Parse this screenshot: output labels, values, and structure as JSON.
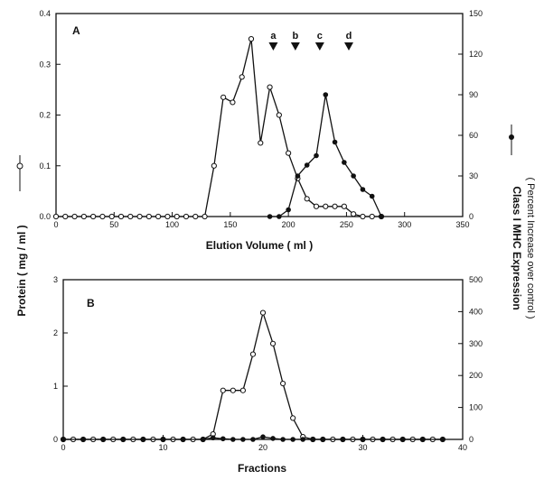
{
  "chart_data": [
    {
      "panel": "A",
      "type": "line",
      "xlabel": "Elution Volume ( ml )",
      "ylabel_left": "Protein ( mg / ml )",
      "ylabel_right_line1": "Class I MHC Expression",
      "ylabel_right_line2": "( Percent Increase over control )",
      "xlim": [
        0,
        350
      ],
      "ylim_left": [
        0,
        0.4
      ],
      "ylim_right": [
        0,
        150
      ],
      "xticks": [
        0,
        50,
        100,
        150,
        200,
        250,
        300,
        350
      ],
      "yticks_left": [
        "0.0",
        "0.1",
        "0.2",
        "0.3",
        "0.4"
      ],
      "yticks_right": [
        "0",
        "30",
        "60",
        "90",
        "120",
        "150"
      ],
      "markers": [
        {
          "label": "a",
          "x": 187
        },
        {
          "label": "b",
          "x": 206
        },
        {
          "label": "c",
          "x": 227
        },
        {
          "label": "d",
          "x": 252
        }
      ],
      "series": [
        {
          "axis": "left",
          "marker": "open-circle",
          "x": [
            0,
            8,
            16,
            24,
            32,
            40,
            48,
            56,
            64,
            72,
            80,
            88,
            96,
            104,
            112,
            120,
            128,
            136,
            144,
            152,
            160,
            168,
            176,
            184,
            192,
            200,
            208,
            216,
            224,
            232,
            240,
            248,
            256,
            264,
            272,
            280
          ],
          "y": [
            0,
            0,
            0,
            0,
            0,
            0,
            0,
            0,
            0,
            0,
            0,
            0,
            0,
            0,
            0,
            0,
            0,
            0.1,
            0.235,
            0.225,
            0.275,
            0.35,
            0.145,
            0.255,
            0.2,
            0.125,
            0.075,
            0.035,
            0.02,
            0.02,
            0.02,
            0.02,
            0.005,
            0,
            0,
            0
          ]
        },
        {
          "axis": "right",
          "marker": "filled-circle",
          "x": [
            184,
            192,
            200,
            208,
            216,
            224,
            232,
            240,
            248,
            256,
            264,
            272,
            280
          ],
          "y": [
            0,
            0,
            5,
            30,
            38,
            45,
            90,
            55,
            40,
            30,
            20,
            15,
            0
          ]
        }
      ]
    },
    {
      "panel": "B",
      "type": "line",
      "xlabel": "Fractions",
      "ylabel_left": "",
      "xlim": [
        0,
        40
      ],
      "ylim_left": [
        0,
        3
      ],
      "ylim_right": [
        0,
        500
      ],
      "xticks": [
        0,
        10,
        20,
        30,
        40
      ],
      "yticks_left": [
        "0",
        "1",
        "2",
        "3"
      ],
      "yticks_right": [
        "0",
        "100",
        "200",
        "300",
        "400",
        "500"
      ],
      "series": [
        {
          "axis": "left",
          "marker": "open-circle",
          "x": [
            0,
            1,
            2,
            3,
            4,
            5,
            6,
            7,
            8,
            9,
            10,
            11,
            12,
            13,
            14,
            15,
            16,
            17,
            18,
            19,
            20,
            21,
            22,
            23,
            24,
            25,
            26,
            27,
            28,
            29,
            30,
            31,
            32,
            33,
            34,
            35,
            36,
            37,
            38
          ],
          "y": [
            0,
            0,
            0,
            0,
            0,
            0,
            0,
            0,
            0,
            0,
            0,
            0,
            0,
            0,
            0,
            0.1,
            0.92,
            0.92,
            0.92,
            1.6,
            2.38,
            1.8,
            1.05,
            0.4,
            0.05,
            0,
            0,
            0,
            0,
            0,
            0,
            0,
            0,
            0,
            0,
            0,
            0,
            0,
            0
          ]
        },
        {
          "axis": "right",
          "marker": "filled-circle",
          "x": [
            0,
            2,
            4,
            6,
            8,
            10,
            12,
            14,
            15,
            16,
            17,
            18,
            19,
            20,
            21,
            22,
            23,
            24,
            25,
            26,
            28,
            30,
            32,
            34,
            36,
            38
          ],
          "y": [
            0,
            0,
            0,
            0,
            0,
            0,
            0,
            0,
            5,
            2,
            0,
            0,
            0,
            8,
            3,
            0,
            0,
            0,
            0,
            0,
            0,
            0,
            0,
            0,
            0,
            0
          ]
        }
      ]
    }
  ]
}
